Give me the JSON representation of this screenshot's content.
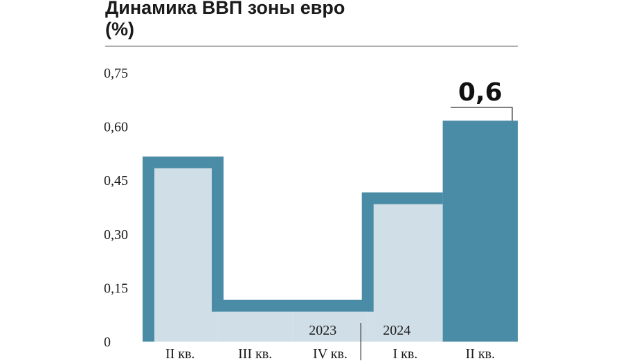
{
  "header": {
    "title": "Динамика ВВП зоны евро",
    "subtitle": "(%)"
  },
  "colors": {
    "dark_bar": "#4a8ba6",
    "light_fill": "#d0dfe7",
    "text": "#1a1a1a"
  },
  "chart_data": {
    "type": "bar",
    "title": "Динамика ВВП зоны евро",
    "subtitle": "(%)",
    "categories": [
      "II кв.",
      "III кв.",
      "IV кв.",
      "I кв.",
      "II кв."
    ],
    "years": [
      {
        "label": "2023",
        "categories": [
          "II кв.",
          "III кв.",
          "IV кв."
        ]
      },
      {
        "label": "2024",
        "categories": [
          "I кв.",
          "II кв."
        ]
      }
    ],
    "values": [
      0.5,
      0.1,
      0.1,
      0.4,
      0.6
    ],
    "highlighted_index": 4,
    "highlight_label": "0,6",
    "yticks": [
      "0",
      "0,15",
      "0,30",
      "0,45",
      "0,60",
      "0,75"
    ],
    "ylim": [
      0,
      0.75
    ],
    "grid": false,
    "legend": "none"
  }
}
